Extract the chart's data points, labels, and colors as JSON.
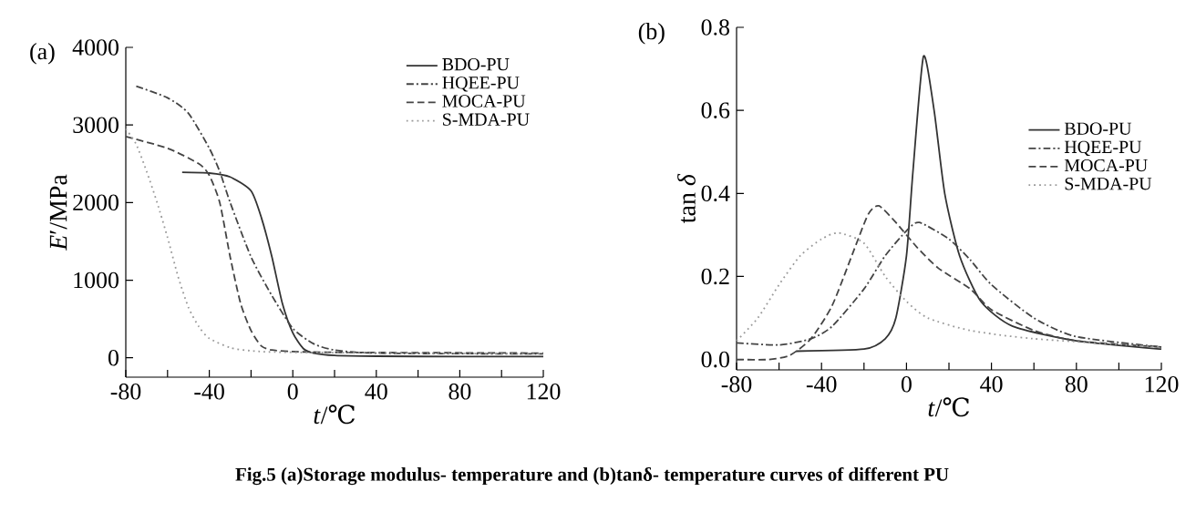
{
  "chart_data": [
    {
      "type": "line",
      "title": "(a)",
      "xlabel": "*t*/℃",
      "ylabel": "*E*′/MPa",
      "xlim": [
        -80,
        120
      ],
      "ylim": [
        -250,
        4000
      ],
      "xticks": [
        -80,
        {
          "value": -60,
          "label": null
        },
        -40,
        {
          "value": -20,
          "label": null
        },
        0,
        {
          "value": 20,
          "label": null
        },
        40,
        {
          "value": 60,
          "label": null
        },
        80,
        {
          "value": 100,
          "label": null
        },
        120
      ],
      "yticks": [
        0,
        1000,
        2000,
        3000,
        4000
      ],
      "legend": "top right",
      "grid": false,
      "marker": "none",
      "series": [
        {
          "name": "BDO-PU",
          "color": "#333333",
          "line_style": "solid",
          "x": [
            -53,
            -40,
            -30,
            -20,
            -15,
            -10,
            -5,
            0,
            5,
            10,
            20,
            40,
            80,
            120
          ],
          "values": [
            2390,
            2380,
            2330,
            2150,
            1800,
            1300,
            700,
            320,
            120,
            60,
            30,
            20,
            15,
            15
          ]
        },
        {
          "name": "HQEE-PU",
          "color": "#444444",
          "line_style": "dashdot",
          "x": [
            -75,
            -60,
            -50,
            -40,
            -35,
            -30,
            -20,
            -10,
            0,
            10,
            20,
            40,
            120
          ],
          "values": [
            3500,
            3350,
            3150,
            2700,
            2400,
            2000,
            1300,
            800,
            380,
            180,
            100,
            60,
            50
          ]
        },
        {
          "name": "MOCA-PU",
          "color": "#444444",
          "line_style": "dashed",
          "x": [
            -80,
            -60,
            -45,
            -40,
            -35,
            -30,
            -25,
            -20,
            -15,
            -10,
            0,
            20,
            120
          ],
          "values": [
            2850,
            2700,
            2500,
            2350,
            2000,
            1300,
            700,
            350,
            150,
            100,
            80,
            70,
            60
          ]
        },
        {
          "name": "S-MDA-PU",
          "color": "#999999",
          "line_style": "dotted",
          "x": [
            -80,
            -75,
            -70,
            -65,
            -60,
            -55,
            -50,
            -45,
            -40,
            -30,
            -20,
            0,
            120
          ],
          "values": [
            2950,
            2750,
            2400,
            2000,
            1550,
            1050,
            650,
            400,
            250,
            130,
            90,
            70,
            50
          ]
        }
      ]
    },
    {
      "type": "line",
      "title": "(b)",
      "xlabel": "*t*/℃",
      "ylabel": "tan *δ*",
      "xlim": [
        -80,
        120
      ],
      "ylim": [
        -0.025,
        0.8
      ],
      "xticks": [
        -80,
        {
          "value": -60,
          "label": null
        },
        -40,
        {
          "value": -20,
          "label": null
        },
        0,
        {
          "value": 20,
          "label": null
        },
        40,
        {
          "value": 60,
          "label": null
        },
        80,
        {
          "value": 100,
          "label": null
        },
        120
      ],
      "yticks": [
        {
          "value": 0,
          "label": "0.0"
        },
        0.2,
        0.4,
        0.6,
        0.8
      ],
      "legend": "right",
      "grid": false,
      "marker": "none",
      "annotations": [
        "**Fig.5 (a)Storage modulus- temperature and (b)tanδ- temperature curves of different PU**"
      ],
      "series": [
        {
          "name": "BDO-PU",
          "color": "#333333",
          "line_style": "solid",
          "x": [
            -52,
            -20,
            -10,
            -5,
            0,
            3,
            8,
            13,
            18,
            25,
            35,
            50,
            80,
            120
          ],
          "values": [
            0.02,
            0.025,
            0.05,
            0.1,
            0.25,
            0.45,
            0.73,
            0.6,
            0.4,
            0.25,
            0.14,
            0.08,
            0.045,
            0.025
          ]
        },
        {
          "name": "HQEE-PU",
          "color": "#444444",
          "line_style": "dashdot",
          "x": [
            -80,
            -60,
            -45,
            -35,
            -20,
            -10,
            0,
            6,
            20,
            30,
            40,
            60,
            80,
            120
          ],
          "values": [
            0.04,
            0.035,
            0.05,
            0.08,
            0.17,
            0.25,
            0.31,
            0.33,
            0.29,
            0.24,
            0.18,
            0.1,
            0.055,
            0.03
          ]
        },
        {
          "name": "MOCA-PU",
          "color": "#444444",
          "line_style": "dashed",
          "x": [
            -80,
            -65,
            -55,
            -45,
            -35,
            -25,
            -18,
            -13,
            -5,
            5,
            15,
            30,
            40,
            60,
            80,
            120
          ],
          "values": [
            0,
            0,
            0.01,
            0.05,
            0.13,
            0.26,
            0.35,
            0.37,
            0.33,
            0.27,
            0.22,
            0.17,
            0.12,
            0.07,
            0.045,
            0.03
          ]
        },
        {
          "name": "S-MDA-PU",
          "color": "#999999",
          "line_style": "dotted",
          "x": [
            -80,
            -70,
            -60,
            -50,
            -40,
            -32,
            -20,
            -10,
            0,
            10,
            30,
            60,
            120
          ],
          "values": [
            0.045,
            0.1,
            0.18,
            0.25,
            0.29,
            0.305,
            0.28,
            0.2,
            0.14,
            0.1,
            0.07,
            0.05,
            0.03
          ]
        }
      ]
    }
  ]
}
